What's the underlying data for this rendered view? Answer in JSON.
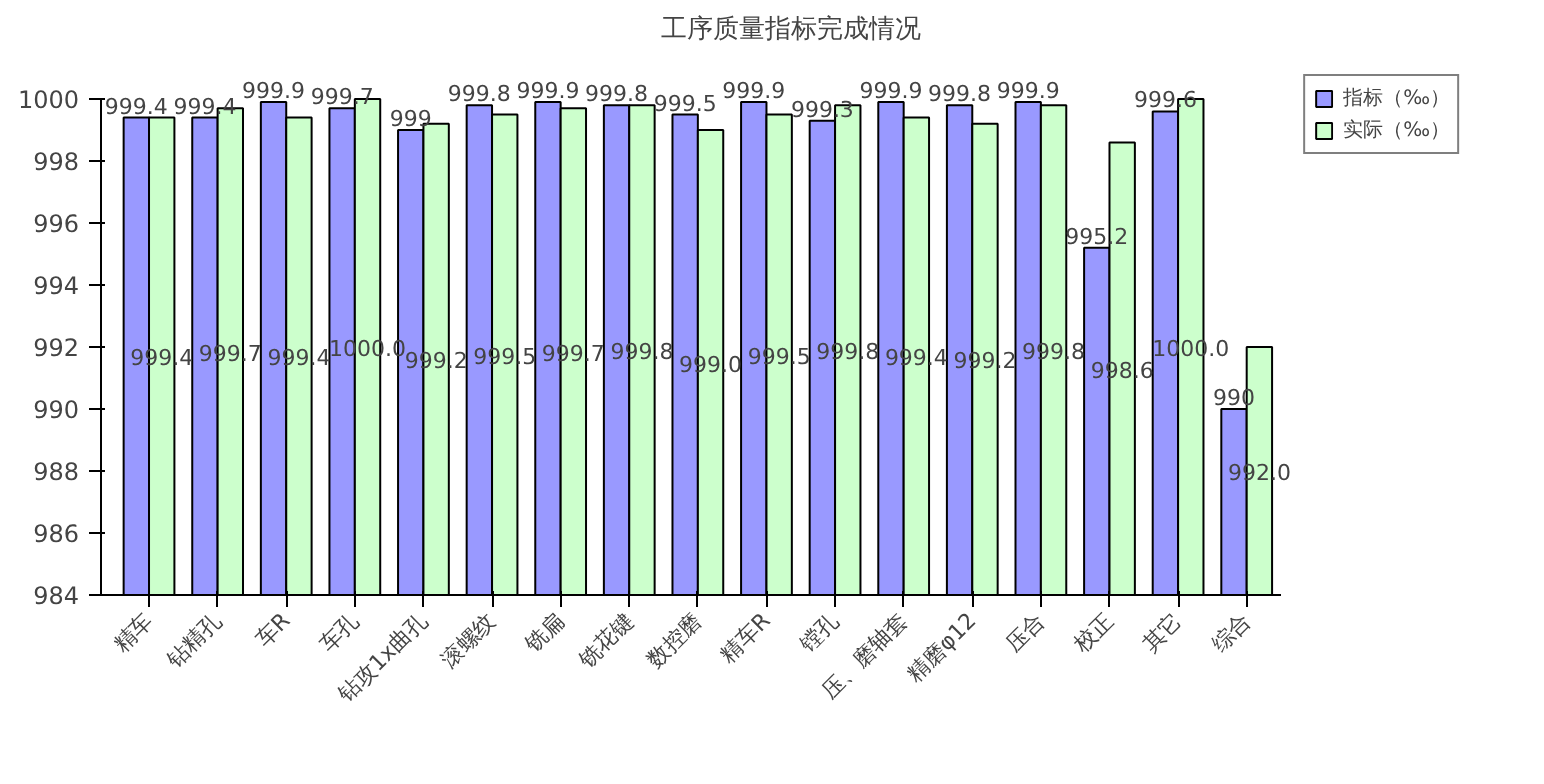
{
  "chart_data": {
    "type": "bar",
    "title": "工序质量指标完成情况",
    "categories": [
      "精车",
      "钻精孔",
      "车R",
      "车孔",
      "钻攻1x曲孔",
      "滚螺纹",
      "铣扁",
      "铣花键",
      "数控磨",
      "精车R",
      "镗孔",
      "压、磨轴套",
      "精磨φ12",
      "压合",
      "校正",
      "其它",
      "综合"
    ],
    "series": [
      {
        "name": "指标（‰）",
        "color": "#9999ff",
        "values": [
          999.4,
          999.4,
          999.9,
          999.7,
          999,
          999.8,
          999.9,
          999.8,
          999.5,
          999.9,
          999.3,
          999.9,
          999.8,
          999.9,
          995.2,
          999.6,
          990
        ],
        "value_labels": [
          "999.4",
          "999.4",
          "999.9",
          "999.7",
          "999",
          "999.8",
          "999.9",
          "999.8",
          "999.5",
          "999.9",
          "999.3",
          "999.9",
          "999.8",
          "999.9",
          "995.2",
          "999.6",
          "990"
        ]
      },
      {
        "name": "实际（‰）",
        "color": "#ccffcc",
        "values": [
          999.4,
          999.7,
          999.4,
          1000.0,
          999.2,
          999.5,
          999.7,
          999.8,
          999.0,
          999.5,
          999.8,
          999.4,
          999.2,
          999.8,
          998.6,
          1000.0,
          992.0
        ],
        "value_labels": [
          "999.4",
          "999.7",
          "999.4",
          "1000.0",
          "999.2",
          "999.5",
          "999.7",
          "999.8",
          "999.0",
          "999.5",
          "999.8",
          "999.4",
          "999.2",
          "999.8",
          "998.6",
          "1000.0",
          "992.0"
        ]
      }
    ],
    "ylim": [
      984,
      1000
    ],
    "yticks": [
      984,
      986,
      988,
      990,
      992,
      994,
      996,
      998,
      1000
    ],
    "grid": false,
    "legend": "top right"
  }
}
